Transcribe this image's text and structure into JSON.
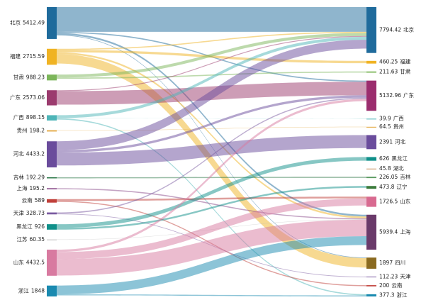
{
  "chart_data": {
    "type": "sankey",
    "left_nodes": [
      {
        "name": "北京",
        "value": 5412.49,
        "color": "#1f6b9c"
      },
      {
        "name": "福建",
        "value": 2715.59,
        "color": "#f0b323"
      },
      {
        "name": "甘肃",
        "value": 988.23,
        "color": "#7cb65a"
      },
      {
        "name": "广东",
        "value": 2573.06,
        "color": "#9b3b6e"
      },
      {
        "name": "广西",
        "value": 898.15,
        "color": "#4eb5b8"
      },
      {
        "name": "贵州",
        "value": 198.2,
        "color": "#e0a030"
      },
      {
        "name": "河北",
        "value": 4433.2,
        "color": "#6a4c9c"
      },
      {
        "name": "吉林",
        "value": 192.29,
        "color": "#2f7a4a"
      },
      {
        "name": "上海",
        "value": 195.2,
        "color": "#8a4a8a"
      },
      {
        "name": "云南",
        "value": 589,
        "color": "#c0403a"
      },
      {
        "name": "天津",
        "value": 328.73,
        "color": "#7a5aa0"
      },
      {
        "name": "黑龙江",
        "value": 926,
        "color": "#10908a"
      },
      {
        "name": "江苏",
        "value": 60.35,
        "color": "#bbbbbb"
      },
      {
        "name": "山东",
        "value": 4432.5,
        "color": "#d87aa0"
      },
      {
        "name": "浙江",
        "value": 1848,
        "color": "#1a8ab0"
      }
    ],
    "right_nodes": [
      {
        "name": "北京",
        "value": 7794.42,
        "color": "#1f6b9c"
      },
      {
        "name": "福建",
        "value": 460.25,
        "color": "#f0b323"
      },
      {
        "name": "甘肃",
        "value": 211.63,
        "color": "#7cb65a"
      },
      {
        "name": "广东",
        "value": 5132.96,
        "color": "#9b2d6e"
      },
      {
        "name": "广西",
        "value": 39.9,
        "color": "#4eb5b8"
      },
      {
        "name": "贵州",
        "value": 64.5,
        "color": "#e0a030"
      },
      {
        "name": "河北",
        "value": 2391,
        "color": "#6a4c9c"
      },
      {
        "name": "黑龙江",
        "value": 626,
        "color": "#10908a"
      },
      {
        "name": "湖北",
        "value": 45.8,
        "color": "#c89060"
      },
      {
        "name": "吉林",
        "value": 226.05,
        "color": "#5a9a60"
      },
      {
        "name": "辽宁",
        "value": 473.8,
        "color": "#3a7a3a"
      },
      {
        "name": "山东",
        "value": 1726.5,
        "color": "#d86a90"
      },
      {
        "name": "上海",
        "value": 5939.4,
        "color": "#6a3a6a"
      },
      {
        "name": "四川",
        "value": 1897,
        "color": "#8a6a20"
      },
      {
        "name": "天津",
        "value": 112.23,
        "color": "#7a5aa0"
      },
      {
        "name": "云南",
        "value": 200,
        "color": "#c0403a"
      },
      {
        "name": "浙江",
        "value": 377.3,
        "color": "#1a8ab0"
      }
    ],
    "links": [
      {
        "source": 0,
        "target": 0,
        "value": 4200
      },
      {
        "source": 0,
        "target": 3,
        "value": 200
      },
      {
        "source": 0,
        "target": 12,
        "value": 300
      },
      {
        "source": 0,
        "target": 13,
        "value": 100
      },
      {
        "source": 1,
        "target": 0,
        "value": 200
      },
      {
        "source": 1,
        "target": 1,
        "value": 400
      },
      {
        "source": 1,
        "target": 12,
        "value": 300
      },
      {
        "source": 1,
        "target": 13,
        "value": 1600
      },
      {
        "source": 2,
        "target": 0,
        "value": 500
      },
      {
        "source": 2,
        "target": 2,
        "value": 200
      },
      {
        "source": 3,
        "target": 0,
        "value": 150
      },
      {
        "source": 3,
        "target": 3,
        "value": 2300
      },
      {
        "source": 4,
        "target": 0,
        "value": 500
      },
      {
        "source": 4,
        "target": 4,
        "value": 40
      },
      {
        "source": 4,
        "target": 16,
        "value": 200
      },
      {
        "source": 5,
        "target": 5,
        "value": 60
      },
      {
        "source": 6,
        "target": 0,
        "value": 1500
      },
      {
        "source": 6,
        "target": 3,
        "value": 400
      },
      {
        "source": 6,
        "target": 6,
        "value": 2200
      },
      {
        "source": 7,
        "target": 9,
        "value": 190
      },
      {
        "source": 8,
        "target": 12,
        "value": 190
      },
      {
        "source": 9,
        "target": 11,
        "value": 300
      },
      {
        "source": 9,
        "target": 15,
        "value": 180
      },
      {
        "source": 10,
        "target": 3,
        "value": 200
      },
      {
        "source": 10,
        "target": 14,
        "value": 110
      },
      {
        "source": 11,
        "target": 7,
        "value": 620
      },
      {
        "source": 11,
        "target": 10,
        "value": 300
      },
      {
        "source": 12,
        "target": 12,
        "value": 60
      },
      {
        "source": 13,
        "target": 3,
        "value": 400
      },
      {
        "source": 13,
        "target": 11,
        "value": 1200
      },
      {
        "source": 13,
        "target": 12,
        "value": 2800
      },
      {
        "source": 14,
        "target": 12,
        "value": 1500
      },
      {
        "source": 14,
        "target": 16,
        "value": 170
      }
    ]
  }
}
